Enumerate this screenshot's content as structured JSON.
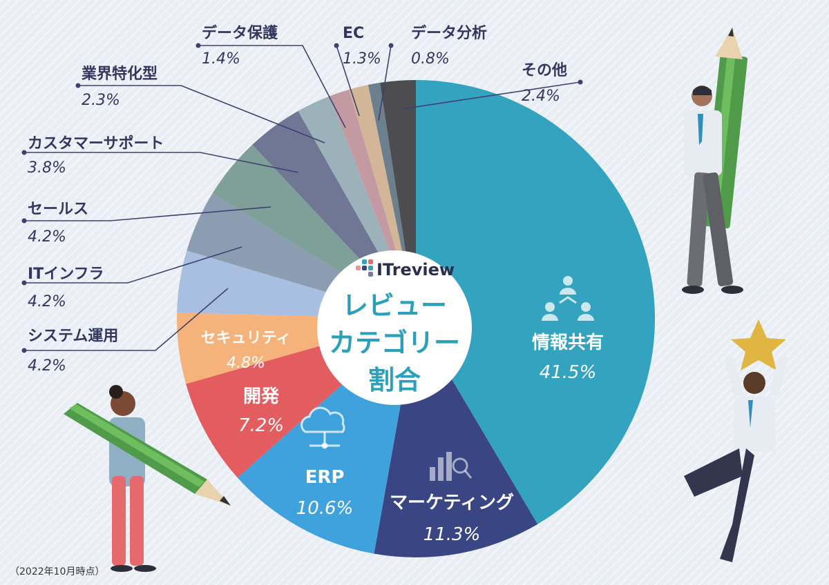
{
  "chart_data": {
    "type": "pie",
    "title_lines": [
      "レビュー",
      "カテゴリー",
      "割合"
    ],
    "logo_text": "ITreview",
    "start": "12 o'clock",
    "direction": "clockwise",
    "slices": [
      {
        "label": "情報共有",
        "value": 41.5,
        "value_text": "41.5%",
        "color": "#33a3bf",
        "label_placement": "inside",
        "icon": "people-network-icon"
      },
      {
        "label": "マーケティング",
        "value": 11.3,
        "value_text": "11.3%",
        "color": "#3a4583",
        "label_placement": "inside",
        "icon": "bar-chart-magnifier-icon"
      },
      {
        "label": "ERP",
        "value": 10.6,
        "value_text": "10.6%",
        "color": "#3fa2dc",
        "label_placement": "inside",
        "icon": "cloud-network-icon"
      },
      {
        "label": "開発",
        "value": 7.2,
        "value_text": "7.2%",
        "color": "#e35c5f",
        "label_placement": "inside"
      },
      {
        "label": "セキュリティ",
        "value": 4.8,
        "value_text": "4.8%",
        "color": "#f5b27b",
        "label_placement": "inside"
      },
      {
        "label": "システム運用",
        "value": 4.2,
        "value_text": "4.2%",
        "color": "#a8bfe2",
        "label_placement": "outside"
      },
      {
        "label": "ITインフラ",
        "value": 4.2,
        "value_text": "4.2%",
        "color": "#8d9db1",
        "label_placement": "outside"
      },
      {
        "label": "セールス",
        "value": 4.2,
        "value_text": "4.2%",
        "color": "#7ea099",
        "label_placement": "outside"
      },
      {
        "label": "カスタマーサポート",
        "value": 3.8,
        "value_text": "3.8%",
        "color": "#6f7795",
        "label_placement": "outside"
      },
      {
        "label": "業界特化型",
        "value": 2.3,
        "value_text": "2.3%",
        "color": "#9bb2bb",
        "label_placement": "outside"
      },
      {
        "label": "データ保護",
        "value": 1.4,
        "value_text": "1.4%",
        "color": "#c49aa2",
        "label_placement": "outside"
      },
      {
        "label": "EC",
        "value": 1.3,
        "value_text": "1.3%",
        "color": "#d3b697",
        "label_placement": "outside"
      },
      {
        "label": "データ分析",
        "value": 0.8,
        "value_text": "0.8%",
        "color": "#6b7f8c",
        "label_placement": "outside"
      },
      {
        "label": "その他",
        "value": 2.4,
        "value_text": "2.4%",
        "color": "#4d4d4f",
        "label_placement": "outside"
      }
    ]
  },
  "footnote": "（2022年10月時点）",
  "colors": {
    "label_text": "#33375e",
    "leader_line": "#3e4170",
    "center_title": "#2ba0ba",
    "background": "#e8eef4"
  }
}
